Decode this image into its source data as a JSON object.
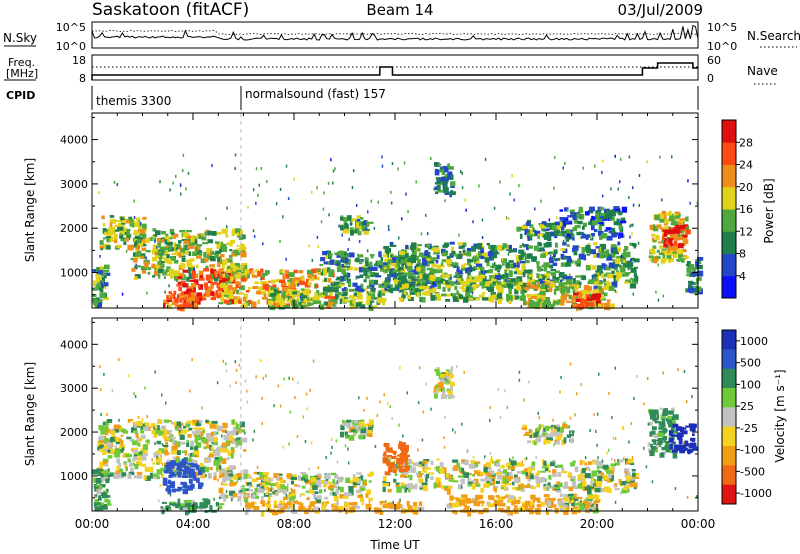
{
  "header": {
    "title": "Saskatoon (fitACF)",
    "beam": "Beam 14",
    "date": "03/Jul/2009"
  },
  "top_panels": {
    "nsky_label": "N.Sky",
    "nsky_ticks": [
      "10^5",
      "10^0"
    ],
    "nsearch_label": "N.Search",
    "nsearch_ticks": [
      "10^5",
      "10^0"
    ],
    "freq_label_1": "Freq.",
    "freq_label_2": "[MHz]",
    "freq_ticks": [
      18,
      8
    ],
    "nave_label": "Nave",
    "nave_ticks": [
      60,
      0
    ],
    "cpid_label": "CPID",
    "cpid_segments": [
      {
        "text": "themis 3300",
        "start_hour": 0
      },
      {
        "text": "normalsound (fast) 157",
        "start_hour": 6
      }
    ]
  },
  "chart_data": [
    {
      "type": "heatmap",
      "name": "power",
      "ylabel": "Slant Range [km]",
      "xlabel": "",
      "xlim": [
        0,
        24
      ],
      "ylim": [
        200,
        4600
      ],
      "yticks": [
        1000,
        2000,
        3000,
        4000
      ],
      "colorbar_label": "Power [dB]",
      "colorbar_ticks": [
        4,
        8,
        12,
        16,
        20,
        24,
        28
      ],
      "colorbar_range": [
        0,
        32
      ],
      "colors": [
        "#0a10f5",
        "#2347c8",
        "#1f7f4a",
        "#4fa83d",
        "#e2d21b",
        "#ef8d1c",
        "#ff4a14",
        "#e00f0f"
      ],
      "features": [
        {
          "t": [
            0.2,
            2.0
          ],
          "r": [
            1600,
            2300
          ],
          "power": 16
        },
        {
          "t": [
            1.5,
            6.0
          ],
          "r": [
            900,
            2000
          ],
          "power": 16
        },
        {
          "t": [
            3.3,
            5.6
          ],
          "r": [
            400,
            1100
          ],
          "power": 27
        },
        {
          "t": [
            2.8,
            4.0
          ],
          "r": [
            250,
            600
          ],
          "power": 25
        },
        {
          "t": [
            5.0,
            9.5
          ],
          "r": [
            300,
            1100
          ],
          "power": 20
        },
        {
          "t": [
            7.0,
            11.5
          ],
          "r": [
            250,
            650
          ],
          "power": 14
        },
        {
          "t": [
            9.0,
            13.5
          ],
          "r": [
            600,
            1500
          ],
          "power": 11
        },
        {
          "t": [
            11.5,
            21.5
          ],
          "r": [
            700,
            1700
          ],
          "power": 12
        },
        {
          "t": [
            12.0,
            18.0
          ],
          "r": [
            400,
            1000
          ],
          "power": 14
        },
        {
          "t": [
            17.0,
            20.5
          ],
          "r": [
            250,
            800
          ],
          "power": 18
        },
        {
          "t": [
            19.0,
            20.0
          ],
          "r": [
            250,
            550
          ],
          "power": 26
        },
        {
          "t": [
            9.8,
            11.0
          ],
          "r": [
            1900,
            2300
          ],
          "power": 12
        },
        {
          "t": [
            13.5,
            14.2
          ],
          "r": [
            2800,
            3500
          ],
          "power": 10
        },
        {
          "t": [
            16.8,
            19.0
          ],
          "r": [
            1800,
            2200
          ],
          "power": 12
        },
        {
          "t": [
            18.5,
            21.0
          ],
          "r": [
            1800,
            2500
          ],
          "power": 8
        },
        {
          "t": [
            22.0,
            23.5
          ],
          "r": [
            1300,
            2400
          ],
          "power": 18
        },
        {
          "t": [
            22.5,
            23.5
          ],
          "r": [
            1650,
            2100
          ],
          "power": 28
        },
        {
          "t": [
            23.5,
            24.0
          ],
          "r": [
            600,
            1400
          ],
          "power": 10
        },
        {
          "t": [
            0.0,
            0.5
          ],
          "r": [
            300,
            1200
          ],
          "power": 12
        }
      ]
    },
    {
      "type": "heatmap",
      "name": "velocity",
      "ylabel": "Slant Range [km]",
      "xlabel": "Time UT",
      "xlim": [
        0,
        24
      ],
      "ylim": [
        200,
        4600
      ],
      "xticks": [
        0,
        4,
        8,
        12,
        16,
        20,
        24
      ],
      "xtick_labels": [
        "00:00",
        "04:00",
        "08:00",
        "12:00",
        "16:00",
        "20:00",
        "00:00"
      ],
      "yticks": [
        1000,
        2000,
        3000,
        4000
      ],
      "colorbar_label": "Velocity [m s⁻¹]",
      "colorbar_ticks": [
        "1000",
        "500",
        "100",
        "25",
        "-25",
        "-100",
        "-500",
        "-1000"
      ],
      "colors": [
        "#1d2fb7",
        "#2c55c9",
        "#2e8a57",
        "#6fca3a",
        "#c2c2c2",
        "#f5d21f",
        "#f29d16",
        "#f06a14",
        "#e21313"
      ],
      "features": [
        {
          "t": [
            0.2,
            6.0
          ],
          "r": [
            1000,
            2300
          ],
          "velocity": 0
        },
        {
          "t": [
            2.8,
            4.2
          ],
          "r": [
            700,
            1400
          ],
          "velocity": 500
        },
        {
          "t": [
            2.5,
            5.0
          ],
          "r": [
            200,
            500
          ],
          "velocity": 100
        },
        {
          "t": [
            5.0,
            11.0
          ],
          "r": [
            500,
            1100
          ],
          "velocity": 0
        },
        {
          "t": [
            6.0,
            13.0
          ],
          "r": [
            200,
            450
          ],
          "velocity": -100
        },
        {
          "t": [
            11.5,
            21.5
          ],
          "r": [
            700,
            1400
          ],
          "velocity": 0
        },
        {
          "t": [
            11.5,
            12.5
          ],
          "r": [
            1100,
            1800
          ],
          "velocity": -500
        },
        {
          "t": [
            14.0,
            20.0
          ],
          "r": [
            200,
            600
          ],
          "velocity": -100
        },
        {
          "t": [
            18.5,
            20.0
          ],
          "r": [
            250,
            600
          ],
          "velocity": 0
        },
        {
          "t": [
            9.8,
            11.0
          ],
          "r": [
            1900,
            2300
          ],
          "velocity": 0
        },
        {
          "t": [
            13.5,
            14.2
          ],
          "r": [
            2800,
            3500
          ],
          "velocity": 0
        },
        {
          "t": [
            17.0,
            19.0
          ],
          "r": [
            1800,
            2200
          ],
          "velocity": 0
        },
        {
          "t": [
            22.0,
            23.0
          ],
          "r": [
            1500,
            2600
          ],
          "velocity": 100
        },
        {
          "t": [
            22.8,
            23.8
          ],
          "r": [
            1600,
            2200
          ],
          "velocity": 1000
        },
        {
          "t": [
            0.0,
            0.6
          ],
          "r": [
            300,
            1200
          ],
          "velocity": 100
        }
      ]
    }
  ]
}
